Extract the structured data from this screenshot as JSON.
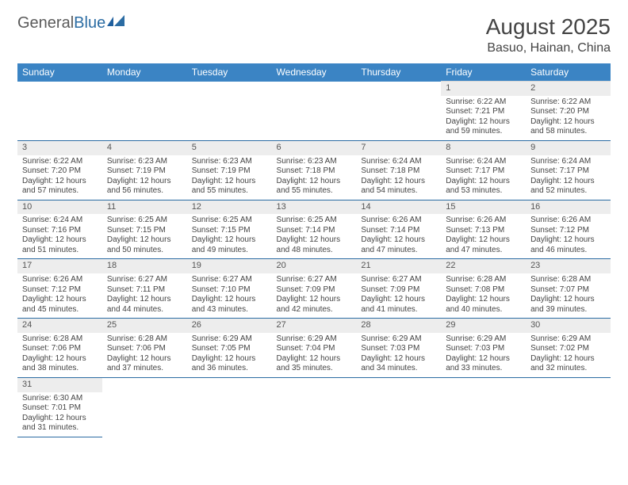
{
  "logo": {
    "general": "General",
    "blue": "Blue"
  },
  "header": {
    "title": "August 2025",
    "location": "Basuo, Hainan, China"
  },
  "colors": {
    "headerBg": "#3b84c4",
    "dayNumBg": "#ededed",
    "rowBorder": "#2b6ca3"
  },
  "weekdays": [
    "Sunday",
    "Monday",
    "Tuesday",
    "Wednesday",
    "Thursday",
    "Friday",
    "Saturday"
  ],
  "weeks": [
    [
      null,
      null,
      null,
      null,
      null,
      {
        "d": "1",
        "sr": "Sunrise: 6:22 AM",
        "ss": "Sunset: 7:21 PM",
        "dl1": "Daylight: 12 hours",
        "dl2": "and 59 minutes."
      },
      {
        "d": "2",
        "sr": "Sunrise: 6:22 AM",
        "ss": "Sunset: 7:20 PM",
        "dl1": "Daylight: 12 hours",
        "dl2": "and 58 minutes."
      }
    ],
    [
      {
        "d": "3",
        "sr": "Sunrise: 6:22 AM",
        "ss": "Sunset: 7:20 PM",
        "dl1": "Daylight: 12 hours",
        "dl2": "and 57 minutes."
      },
      {
        "d": "4",
        "sr": "Sunrise: 6:23 AM",
        "ss": "Sunset: 7:19 PM",
        "dl1": "Daylight: 12 hours",
        "dl2": "and 56 minutes."
      },
      {
        "d": "5",
        "sr": "Sunrise: 6:23 AM",
        "ss": "Sunset: 7:19 PM",
        "dl1": "Daylight: 12 hours",
        "dl2": "and 55 minutes."
      },
      {
        "d": "6",
        "sr": "Sunrise: 6:23 AM",
        "ss": "Sunset: 7:18 PM",
        "dl1": "Daylight: 12 hours",
        "dl2": "and 55 minutes."
      },
      {
        "d": "7",
        "sr": "Sunrise: 6:24 AM",
        "ss": "Sunset: 7:18 PM",
        "dl1": "Daylight: 12 hours",
        "dl2": "and 54 minutes."
      },
      {
        "d": "8",
        "sr": "Sunrise: 6:24 AM",
        "ss": "Sunset: 7:17 PM",
        "dl1": "Daylight: 12 hours",
        "dl2": "and 53 minutes."
      },
      {
        "d": "9",
        "sr": "Sunrise: 6:24 AM",
        "ss": "Sunset: 7:17 PM",
        "dl1": "Daylight: 12 hours",
        "dl2": "and 52 minutes."
      }
    ],
    [
      {
        "d": "10",
        "sr": "Sunrise: 6:24 AM",
        "ss": "Sunset: 7:16 PM",
        "dl1": "Daylight: 12 hours",
        "dl2": "and 51 minutes."
      },
      {
        "d": "11",
        "sr": "Sunrise: 6:25 AM",
        "ss": "Sunset: 7:15 PM",
        "dl1": "Daylight: 12 hours",
        "dl2": "and 50 minutes."
      },
      {
        "d": "12",
        "sr": "Sunrise: 6:25 AM",
        "ss": "Sunset: 7:15 PM",
        "dl1": "Daylight: 12 hours",
        "dl2": "and 49 minutes."
      },
      {
        "d": "13",
        "sr": "Sunrise: 6:25 AM",
        "ss": "Sunset: 7:14 PM",
        "dl1": "Daylight: 12 hours",
        "dl2": "and 48 minutes."
      },
      {
        "d": "14",
        "sr": "Sunrise: 6:26 AM",
        "ss": "Sunset: 7:14 PM",
        "dl1": "Daylight: 12 hours",
        "dl2": "and 47 minutes."
      },
      {
        "d": "15",
        "sr": "Sunrise: 6:26 AM",
        "ss": "Sunset: 7:13 PM",
        "dl1": "Daylight: 12 hours",
        "dl2": "and 47 minutes."
      },
      {
        "d": "16",
        "sr": "Sunrise: 6:26 AM",
        "ss": "Sunset: 7:12 PM",
        "dl1": "Daylight: 12 hours",
        "dl2": "and 46 minutes."
      }
    ],
    [
      {
        "d": "17",
        "sr": "Sunrise: 6:26 AM",
        "ss": "Sunset: 7:12 PM",
        "dl1": "Daylight: 12 hours",
        "dl2": "and 45 minutes."
      },
      {
        "d": "18",
        "sr": "Sunrise: 6:27 AM",
        "ss": "Sunset: 7:11 PM",
        "dl1": "Daylight: 12 hours",
        "dl2": "and 44 minutes."
      },
      {
        "d": "19",
        "sr": "Sunrise: 6:27 AM",
        "ss": "Sunset: 7:10 PM",
        "dl1": "Daylight: 12 hours",
        "dl2": "and 43 minutes."
      },
      {
        "d": "20",
        "sr": "Sunrise: 6:27 AM",
        "ss": "Sunset: 7:09 PM",
        "dl1": "Daylight: 12 hours",
        "dl2": "and 42 minutes."
      },
      {
        "d": "21",
        "sr": "Sunrise: 6:27 AM",
        "ss": "Sunset: 7:09 PM",
        "dl1": "Daylight: 12 hours",
        "dl2": "and 41 minutes."
      },
      {
        "d": "22",
        "sr": "Sunrise: 6:28 AM",
        "ss": "Sunset: 7:08 PM",
        "dl1": "Daylight: 12 hours",
        "dl2": "and 40 minutes."
      },
      {
        "d": "23",
        "sr": "Sunrise: 6:28 AM",
        "ss": "Sunset: 7:07 PM",
        "dl1": "Daylight: 12 hours",
        "dl2": "and 39 minutes."
      }
    ],
    [
      {
        "d": "24",
        "sr": "Sunrise: 6:28 AM",
        "ss": "Sunset: 7:06 PM",
        "dl1": "Daylight: 12 hours",
        "dl2": "and 38 minutes."
      },
      {
        "d": "25",
        "sr": "Sunrise: 6:28 AM",
        "ss": "Sunset: 7:06 PM",
        "dl1": "Daylight: 12 hours",
        "dl2": "and 37 minutes."
      },
      {
        "d": "26",
        "sr": "Sunrise: 6:29 AM",
        "ss": "Sunset: 7:05 PM",
        "dl1": "Daylight: 12 hours",
        "dl2": "and 36 minutes."
      },
      {
        "d": "27",
        "sr": "Sunrise: 6:29 AM",
        "ss": "Sunset: 7:04 PM",
        "dl1": "Daylight: 12 hours",
        "dl2": "and 35 minutes."
      },
      {
        "d": "28",
        "sr": "Sunrise: 6:29 AM",
        "ss": "Sunset: 7:03 PM",
        "dl1": "Daylight: 12 hours",
        "dl2": "and 34 minutes."
      },
      {
        "d": "29",
        "sr": "Sunrise: 6:29 AM",
        "ss": "Sunset: 7:03 PM",
        "dl1": "Daylight: 12 hours",
        "dl2": "and 33 minutes."
      },
      {
        "d": "30",
        "sr": "Sunrise: 6:29 AM",
        "ss": "Sunset: 7:02 PM",
        "dl1": "Daylight: 12 hours",
        "dl2": "and 32 minutes."
      }
    ],
    [
      {
        "d": "31",
        "sr": "Sunrise: 6:30 AM",
        "ss": "Sunset: 7:01 PM",
        "dl1": "Daylight: 12 hours",
        "dl2": "and 31 minutes."
      },
      null,
      null,
      null,
      null,
      null,
      null
    ]
  ]
}
